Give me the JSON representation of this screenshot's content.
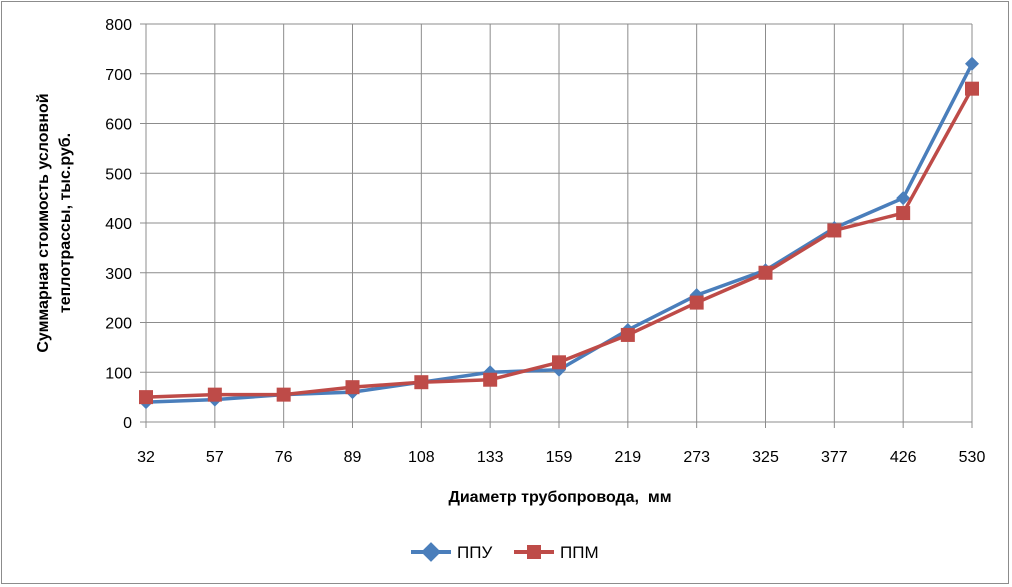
{
  "chart_data": {
    "type": "line",
    "xlabel": "Диаметр трубопровода,  мм",
    "ylabel": "Суммарная стоимость условной теплотрассы, тыс.руб.",
    "ylabel_lines": [
      "Суммарная стоимость условной",
      "теплотрассы, тыс.руб."
    ],
    "categories": [
      "32",
      "57",
      "76",
      "89",
      "108",
      "133",
      "159",
      "219",
      "273",
      "325",
      "377",
      "426",
      "530"
    ],
    "ylim": [
      0,
      800
    ],
    "yticks": [
      0,
      100,
      200,
      300,
      400,
      500,
      600,
      700,
      800
    ],
    "grid": true,
    "legend_position": "bottom",
    "series": [
      {
        "name": "ППУ",
        "color": "#4a7ebb",
        "marker": "diamond",
        "values": [
          40,
          45,
          55,
          60,
          80,
          100,
          105,
          185,
          255,
          305,
          390,
          450,
          720
        ]
      },
      {
        "name": "ППМ",
        "color": "#be4b48",
        "marker": "square",
        "values": [
          50,
          55,
          55,
          70,
          80,
          85,
          120,
          175,
          240,
          300,
          385,
          420,
          670
        ]
      }
    ]
  }
}
